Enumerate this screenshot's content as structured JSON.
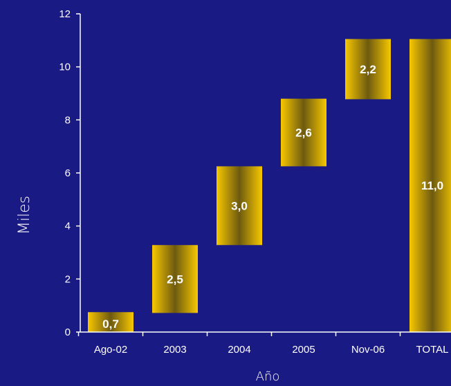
{
  "chart_data": {
    "type": "bar",
    "subtype": "waterfall",
    "categories": [
      "Ago-02",
      "2003",
      "2004",
      "2005",
      "Nov-06",
      "TOTAL"
    ],
    "values": [
      0.7,
      2.5,
      3.0,
      2.6,
      2.2,
      11.0
    ],
    "data_labels": [
      "0,7",
      "2,5",
      "3,0",
      "2,6",
      "2,2",
      "11,0"
    ],
    "ranges": [
      [
        0,
        0.75
      ],
      [
        0.72,
        3.28
      ],
      [
        3.28,
        6.25
      ],
      [
        6.25,
        8.8
      ],
      [
        8.78,
        11.05
      ],
      [
        0,
        11.05
      ]
    ],
    "xlabel": "Año",
    "ylabel": "Miles",
    "ylim": [
      0,
      12
    ],
    "yticks": [
      0,
      2,
      4,
      6,
      8,
      10,
      12
    ],
    "grid": false,
    "legend": "none",
    "colors": {
      "background": "#1a1a85",
      "bar_edge": "#f7c800",
      "bar_center": "#6e5a10",
      "text": "#ffffff",
      "axis": "#ffffff"
    }
  }
}
